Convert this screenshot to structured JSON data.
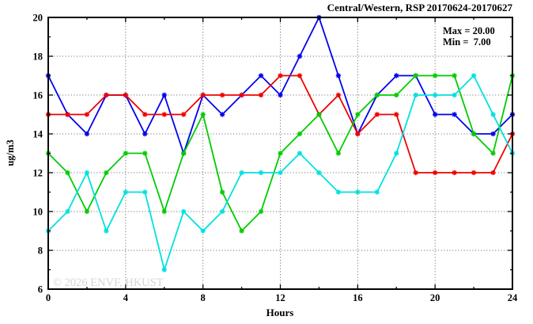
{
  "window": {
    "title": "Central/Western, RSP 20170624-20170627"
  },
  "chart_data": {
    "type": "line",
    "title": "Central/Western, RSP 20170624-20170627",
    "xlabel": "Hours",
    "ylabel": "ug/m3",
    "xlim": [
      0,
      24
    ],
    "ylim": [
      6,
      20
    ],
    "grid": true,
    "grid_x_hours": [
      4,
      8,
      12,
      16,
      20
    ],
    "grid_y_values": [
      8,
      10,
      12,
      14,
      16,
      18
    ],
    "xticks_major": [
      0,
      4,
      8,
      12,
      16,
      20,
      24
    ],
    "xticks_minor": [
      2,
      6,
      10,
      14,
      18,
      22
    ],
    "yticks_major": [
      6,
      8,
      10,
      12,
      14,
      16,
      18,
      20
    ],
    "yticks_minor": [
      7,
      9,
      11,
      13,
      15,
      17,
      19
    ],
    "legend_position": "top-right-inside",
    "annotations": {
      "max_label": "Max = 20.00",
      "min_label": "Min =  7.00"
    },
    "watermark": "© 2026 ENVF, HKUST",
    "marker": "asterisk",
    "x": [
      0,
      1,
      2,
      3,
      4,
      5,
      6,
      7,
      8,
      9,
      10,
      11,
      12,
      13,
      14,
      15,
      16,
      17,
      18,
      19,
      20,
      21,
      22,
      23,
      24
    ],
    "series": [
      {
        "name": "series-blue",
        "color": "#0000ee",
        "values": [
          17,
          15,
          14,
          16,
          16,
          14,
          16,
          13,
          16,
          15,
          16,
          17,
          16,
          18,
          20,
          17,
          14,
          16,
          17,
          17,
          15,
          15,
          14,
          14,
          15
        ]
      },
      {
        "name": "series-red",
        "color": "#ee0000",
        "values": [
          15,
          15,
          15,
          16,
          16,
          15,
          15,
          15,
          16,
          16,
          16,
          16,
          17,
          17,
          15,
          16,
          14,
          15,
          15,
          12,
          12,
          12,
          12,
          12,
          14
        ]
      },
      {
        "name": "series-green",
        "color": "#00cc00",
        "values": [
          13,
          12,
          10,
          12,
          13,
          13,
          10,
          13,
          15,
          11,
          9,
          10,
          13,
          14,
          15,
          13,
          15,
          16,
          16,
          17,
          17,
          17,
          14,
          13,
          17
        ]
      },
      {
        "name": "series-cyan",
        "color": "#00e0e0",
        "values": [
          9,
          10,
          12,
          9,
          11,
          11,
          7,
          10,
          9,
          10,
          12,
          12,
          12,
          13,
          12,
          11,
          11,
          11,
          13,
          16,
          16,
          16,
          17,
          15,
          13
        ]
      }
    ],
    "frame_color": "#000000",
    "grid_color": "#606060"
  }
}
